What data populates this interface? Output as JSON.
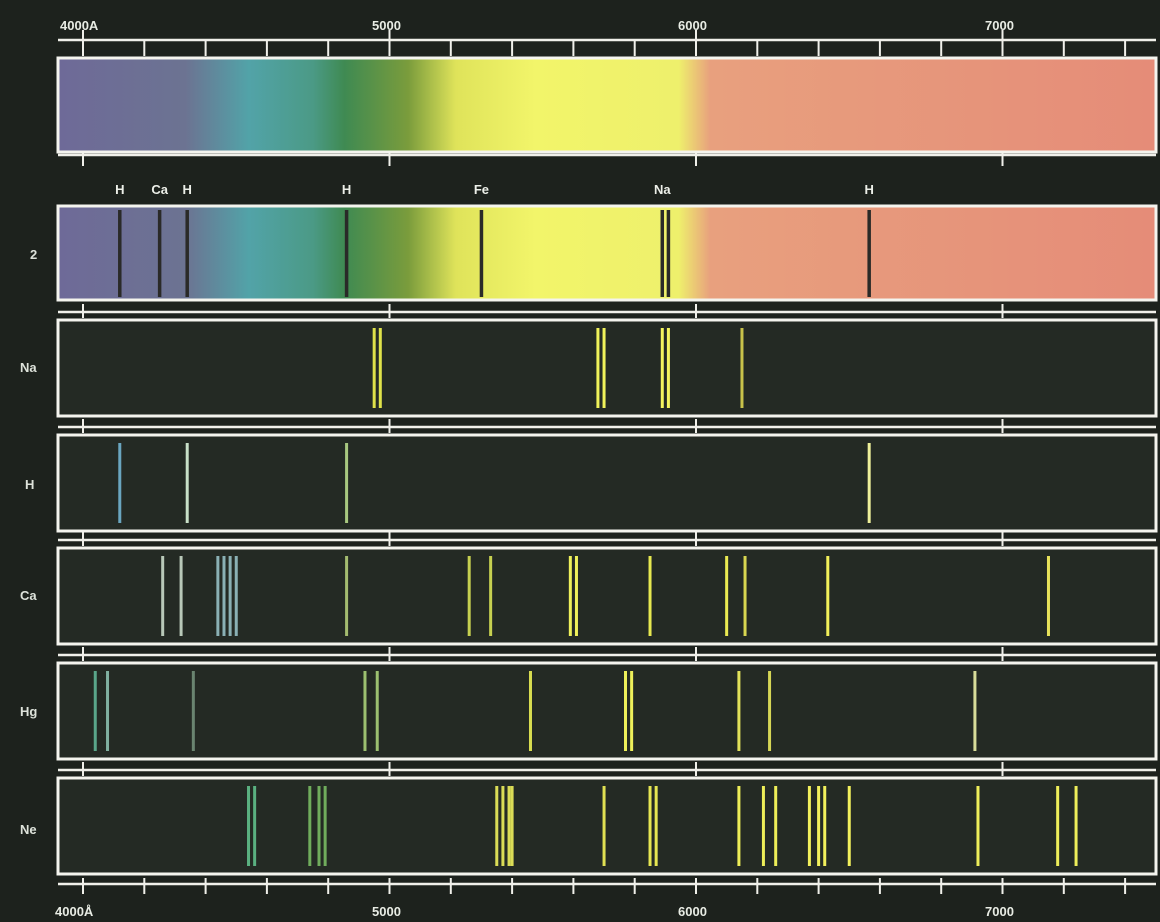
{
  "axis_top": [
    "4000A",
    "5000",
    "6000",
    "7000"
  ],
  "axis_bottom": [
    "4000Å",
    "5000",
    "6000",
    "7000"
  ],
  "axis_range": [
    4000,
    7450
  ],
  "tick_values": [
    4200,
    4400,
    4600,
    4800,
    5000,
    5200,
    5400,
    5600,
    5800,
    6000,
    6200,
    6400,
    6600,
    6800,
    7000,
    7200,
    7400
  ],
  "major_ticks": [
    4000,
    5000,
    6000,
    7000
  ],
  "continuous_spectrum": {
    "stops": [
      {
        "nm": 4000,
        "color": "#6e6a98"
      },
      {
        "nm": 4400,
        "color": "#6c7392"
      },
      {
        "nm": 4600,
        "color": "#52a3a8"
      },
      {
        "nm": 4800,
        "color": "#4b9a86"
      },
      {
        "nm": 4900,
        "color": "#3f8a52"
      },
      {
        "nm": 5100,
        "color": "#7a9c3c"
      },
      {
        "nm": 5250,
        "color": "#dfe35a"
      },
      {
        "nm": 5500,
        "color": "#f2f56a"
      },
      {
        "nm": 5950,
        "color": "#eef06c"
      },
      {
        "nm": 6050,
        "color": "#e8a07e"
      },
      {
        "nm": 7450,
        "color": "#e58c78"
      }
    ]
  },
  "absorption": {
    "row_label": "2",
    "lines": [
      {
        "label": "H",
        "wavelength": 4120
      },
      {
        "label": "Ca",
        "wavelength": 4250
      },
      {
        "label": "H",
        "wavelength": 4340
      },
      {
        "label": "H",
        "wavelength": 4860
      },
      {
        "label": "Fe",
        "wavelength": 5300
      },
      {
        "label": "Na",
        "wavelength": 5890
      },
      {
        "label": "",
        "wavelength": 5910
      },
      {
        "label": "H",
        "wavelength": 6565
      }
    ]
  },
  "emission_rows": [
    {
      "label": "Na",
      "lines": [
        {
          "w": 4950,
          "c": "#dfe24a"
        },
        {
          "w": 4970,
          "c": "#dfe24a"
        },
        {
          "w": 5680,
          "c": "#f0f25a"
        },
        {
          "w": 5700,
          "c": "#f0f25a"
        },
        {
          "w": 5890,
          "c": "#f4f55e"
        },
        {
          "w": 5910,
          "c": "#f4f55e"
        },
        {
          "w": 6150,
          "c": "#c8c24a"
        }
      ]
    },
    {
      "label": "H",
      "lines": [
        {
          "w": 4120,
          "c": "#6aa6c0"
        },
        {
          "w": 4340,
          "c": "#c8e0c8"
        },
        {
          "w": 4860,
          "c": "#a8c880"
        },
        {
          "w": 6565,
          "c": "#eef09a"
        }
      ]
    },
    {
      "label": "Ca",
      "lines": [
        {
          "w": 4260,
          "c": "#b8c8b8"
        },
        {
          "w": 4320,
          "c": "#b8c8b8"
        },
        {
          "w": 4440,
          "c": "#8ab0b4"
        },
        {
          "w": 4460,
          "c": "#8ab0b4"
        },
        {
          "w": 4480,
          "c": "#8ab0b4"
        },
        {
          "w": 4500,
          "c": "#8ab0b4"
        },
        {
          "w": 4860,
          "c": "#a4bc70"
        },
        {
          "w": 5260,
          "c": "#c6d050"
        },
        {
          "w": 5330,
          "c": "#c6d050"
        },
        {
          "w": 5590,
          "c": "#eef05a"
        },
        {
          "w": 5610,
          "c": "#eef05a"
        },
        {
          "w": 5850,
          "c": "#e6e850"
        },
        {
          "w": 6100,
          "c": "#eaea52"
        },
        {
          "w": 6160,
          "c": "#d8d650"
        },
        {
          "w": 6430,
          "c": "#f2f05a"
        },
        {
          "w": 7150,
          "c": "#e8e25a"
        }
      ]
    },
    {
      "label": "Hg",
      "lines": [
        {
          "w": 4040,
          "c": "#5aa68a"
        },
        {
          "w": 4080,
          "c": "#80b0a0"
        },
        {
          "w": 4360,
          "c": "#6a8470"
        },
        {
          "w": 4920,
          "c": "#9cc070"
        },
        {
          "w": 4960,
          "c": "#9cc070"
        },
        {
          "w": 5460,
          "c": "#d8dc50"
        },
        {
          "w": 5770,
          "c": "#eef05a"
        },
        {
          "w": 5790,
          "c": "#eef05a"
        },
        {
          "w": 6140,
          "c": "#e2e25a"
        },
        {
          "w": 6240,
          "c": "#d6d656"
        },
        {
          "w": 6910,
          "c": "#d8dc9a"
        }
      ]
    },
    {
      "label": "Ne",
      "lines": [
        {
          "w": 4540,
          "c": "#5ab080"
        },
        {
          "w": 4560,
          "c": "#5ab080"
        },
        {
          "w": 4740,
          "c": "#70ac5c"
        },
        {
          "w": 4770,
          "c": "#70ac5c"
        },
        {
          "w": 4790,
          "c": "#70ac5c"
        },
        {
          "w": 5350,
          "c": "#dadc56"
        },
        {
          "w": 5370,
          "c": "#dadc56"
        },
        {
          "w": 5390,
          "c": "#dadc56"
        },
        {
          "w": 5400,
          "c": "#dadc56"
        },
        {
          "w": 5700,
          "c": "#e0e052"
        },
        {
          "w": 5850,
          "c": "#e6e652"
        },
        {
          "w": 5870,
          "c": "#e6e652"
        },
        {
          "w": 6140,
          "c": "#eeee58"
        },
        {
          "w": 6220,
          "c": "#eeee58"
        },
        {
          "w": 6260,
          "c": "#eeee58"
        },
        {
          "w": 6370,
          "c": "#f2f05c"
        },
        {
          "w": 6400,
          "c": "#f2f05c"
        },
        {
          "w": 6420,
          "c": "#f2f05c"
        },
        {
          "w": 6500,
          "c": "#f2f05c"
        },
        {
          "w": 6920,
          "c": "#eeee5a"
        },
        {
          "w": 7180,
          "c": "#eeee5a"
        },
        {
          "w": 7240,
          "c": "#eeee5a"
        }
      ]
    }
  ]
}
